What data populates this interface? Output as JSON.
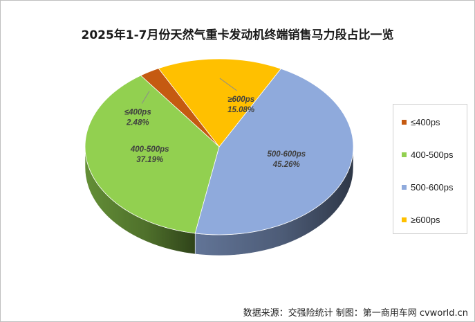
{
  "chart_data": {
    "type": "pie",
    "title": "2025年1-7月份天然气重卡发动机终端销售马力段占比一览",
    "labels": [
      "≤400ps",
      "400-500ps",
      "500-600ps",
      "≥600ps"
    ],
    "values": [
      2.48,
      37.19,
      45.26,
      15.08
    ],
    "value_labels": [
      "2.48%",
      "37.19%",
      "45.26%",
      "15.08%"
    ],
    "colors": [
      "#c55a11",
      "#92d050",
      "#8faadc",
      "#ffc000"
    ],
    "legend_position": "right"
  },
  "footer": {
    "source": "数据来源：交强险统计  制图：第一商用车网 cvworld.cn"
  }
}
